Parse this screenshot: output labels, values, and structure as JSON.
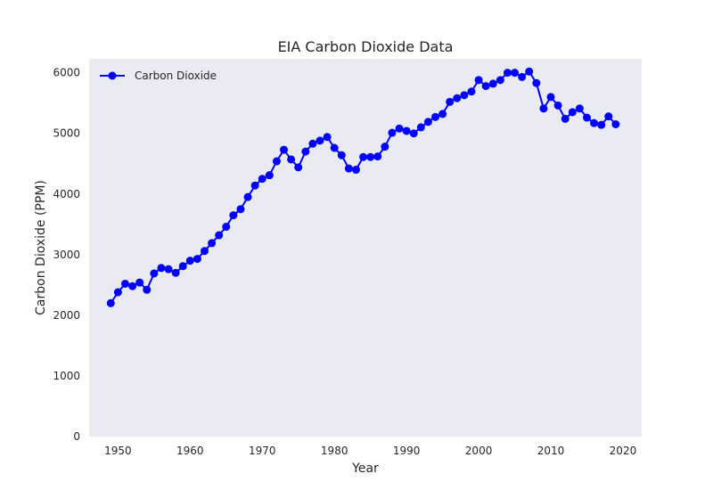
{
  "chart_data": {
    "type": "line",
    "title": "EIA Carbon Dioxide Data",
    "xlabel": "Year",
    "ylabel": "Carbon Dioxide (PPM)",
    "xlim": [
      1946,
      2022.6
    ],
    "ylim": [
      0,
      6230
    ],
    "xticks": [
      1950,
      1960,
      1970,
      1980,
      1990,
      2000,
      2010,
      2020
    ],
    "yticks": [
      0,
      1000,
      2000,
      3000,
      4000,
      5000,
      6000
    ],
    "grid": false,
    "legend": "top-left",
    "colors": {
      "series": "#0000ff",
      "plot_bg": "#eaeaf2",
      "text": "#262626"
    },
    "series": [
      {
        "name": "Carbon Dioxide",
        "x": [
          1949,
          1950,
          1951,
          1952,
          1953,
          1954,
          1955,
          1956,
          1957,
          1958,
          1959,
          1960,
          1961,
          1962,
          1963,
          1964,
          1965,
          1966,
          1967,
          1968,
          1969,
          1970,
          1971,
          1972,
          1973,
          1974,
          1975,
          1976,
          1977,
          1978,
          1979,
          1980,
          1981,
          1982,
          1983,
          1984,
          1985,
          1986,
          1987,
          1988,
          1989,
          1990,
          1991,
          1992,
          1993,
          1994,
          1995,
          1996,
          1997,
          1998,
          1999,
          2000,
          2001,
          2002,
          2003,
          2004,
          2005,
          2006,
          2007,
          2008,
          2009,
          2010,
          2011,
          2012,
          2013,
          2014,
          2015,
          2016,
          2017,
          2018,
          2019
        ],
        "values": [
          2200,
          2380,
          2520,
          2480,
          2540,
          2420,
          2690,
          2780,
          2760,
          2700,
          2810,
          2900,
          2930,
          3060,
          3190,
          3320,
          3460,
          3650,
          3750,
          3950,
          4140,
          4250,
          4310,
          4540,
          4730,
          4570,
          4440,
          4700,
          4830,
          4880,
          4940,
          4760,
          4640,
          4420,
          4400,
          4610,
          4610,
          4620,
          4780,
          5010,
          5080,
          5040,
          5000,
          5100,
          5190,
          5270,
          5320,
          5520,
          5580,
          5630,
          5690,
          5880,
          5780,
          5820,
          5880,
          6000,
          6000,
          5930,
          6020,
          5830,
          5410,
          5600,
          5460,
          5240,
          5350,
          5410,
          5260,
          5170,
          5140,
          5280,
          5150
        ]
      }
    ]
  }
}
